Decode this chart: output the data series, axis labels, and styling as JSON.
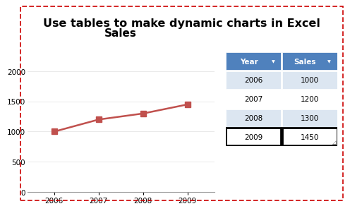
{
  "title_text": "Use tables to make dynamic charts in Excel",
  "title_bg_color": "#F5A800",
  "title_text_color": "#000000",
  "title_fontsize": 11.5,
  "outer_border_color": "#CC0000",
  "chart_title": "Sales",
  "years": [
    2006,
    2007,
    2008,
    2009
  ],
  "sales": [
    1000,
    1200,
    1300,
    1450
  ],
  "line_color": "#C0504D",
  "marker_color": "#C0504D",
  "chart_bg": "#FFFFFF",
  "chart_border_color": "#BBBBBB",
  "ylim": [
    0,
    2500
  ],
  "yticks": [
    0,
    500,
    1000,
    1500,
    2000
  ],
  "table_header_bg": "#4F81BD",
  "table_header_text": "#FFFFFF",
  "table_row_bg_even": "#DCE6F1",
  "table_row_bg_odd": "#FFFFFF",
  "table_last_row_border": "#000000",
  "table_headers": [
    "Year",
    "Sales"
  ],
  "fig_bg": "#FFFFFF",
  "grid_color": "#E0E0E0"
}
